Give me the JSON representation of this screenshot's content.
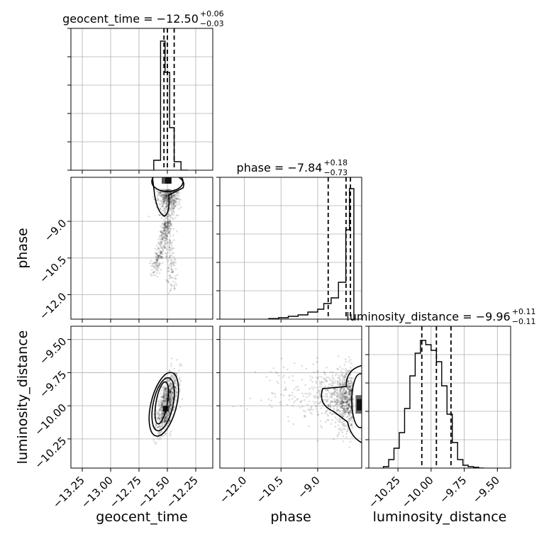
{
  "chart_data": {
    "type": "corner",
    "parameters": [
      "geocent_time",
      "phase",
      "luminosity_distance"
    ],
    "titles": [
      {
        "param": "geocent_time",
        "text": "geocent_time = −12.50",
        "plus": "+0.06",
        "minus": "−0.03"
      },
      {
        "param": "phase",
        "text": "phase = −7.84",
        "plus": "+0.18",
        "minus": "−0.73"
      },
      {
        "param": "luminosity_distance",
        "text": "luminosity_distance = −9.96",
        "plus": "+0.11",
        "minus": "−0.11"
      }
    ],
    "ranges": {
      "geocent_time": [
        -13.35,
        -12.1
      ],
      "phase": [
        -13.0,
        -7.2
      ],
      "luminosity_distance": [
        -10.47,
        -9.4
      ]
    },
    "ticks": {
      "geocent_time": [
        -13.25,
        -13.0,
        -12.75,
        -12.5,
        -12.25
      ],
      "phase": [
        -12.0,
        -10.5,
        -9.0
      ],
      "luminosity_distance": [
        -10.25,
        -10.0,
        -9.75,
        -9.5
      ]
    },
    "tick_labels": {
      "geocent_time": [
        "−13.25",
        "−13.00",
        "−12.75",
        "−12.50",
        "−12.25"
      ],
      "phase": [
        "−12.0",
        "−10.5",
        "−9.0"
      ],
      "luminosity_distance": [
        "−10.25",
        "−10.00",
        "−9.75",
        "−9.50"
      ]
    },
    "quantiles": {
      "geocent_time": [
        -12.53,
        -12.5,
        -12.44
      ],
      "phase": [
        -8.57,
        -7.84,
        -7.66
      ],
      "luminosity_distance": [
        -10.07,
        -9.96,
        -9.85
      ]
    },
    "histograms": {
      "geocent_time": {
        "edges": [
          -12.62,
          -12.56,
          -12.52,
          -12.48,
          -12.44,
          -12.38,
          -12.32
        ],
        "counts": [
          0.07,
          0.91,
          0.69,
          0.3,
          0.06,
          0.0
        ]
      },
      "phase": {
        "edges": [
          -11.0,
          -10.6,
          -10.2,
          -9.8,
          -9.4,
          -9.0,
          -8.75,
          -8.45,
          -8.15,
          -7.85,
          -7.7,
          -7.52
        ],
        "counts": [
          0.004,
          0.01,
          0.02,
          0.03,
          0.05,
          0.07,
          0.11,
          0.15,
          0.26,
          0.63,
          0.92
        ]
      },
      "luminosity_distance": {
        "edges": [
          -10.36,
          -10.32,
          -10.28,
          -10.24,
          -10.2,
          -10.16,
          -10.12,
          -10.08,
          -10.04,
          -10.0,
          -9.96,
          -9.92,
          -9.88,
          -9.84,
          -9.8,
          -9.76,
          -9.72,
          -9.68,
          -9.64,
          -9.6
        ],
        "counts": [
          0.01,
          0.06,
          0.14,
          0.25,
          0.42,
          0.65,
          0.81,
          0.9,
          0.87,
          0.83,
          0.75,
          0.58,
          0.38,
          0.18,
          0.06,
          0.02,
          0.01,
          0.005,
          0.0
        ]
      }
    },
    "grid": true,
    "scatter": true,
    "contours": true
  }
}
